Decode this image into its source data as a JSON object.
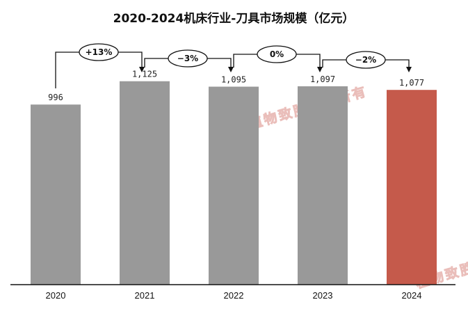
{
  "chart_data": {
    "type": "bar",
    "title": "2020-2024机床行业-刀具市场规模（亿元）",
    "categories": [
      "2020",
      "2021",
      "2022",
      "2023",
      "2024"
    ],
    "values": [
      996,
      1125,
      1095,
      1097,
      1077
    ],
    "value_labels": [
      "996",
      "1,125",
      "1,095",
      "1,097",
      "1,077"
    ],
    "growth_labels": [
      "+13%",
      "−3%",
      "0%",
      "−2%"
    ],
    "ylim": [
      0,
      1250
    ],
    "grid": false,
    "legend": "none",
    "colors": {
      "bar": "#999999",
      "highlight": "#c55a4b",
      "highlight_category": "2024"
    },
    "watermark": "植物致胜版权所有"
  }
}
